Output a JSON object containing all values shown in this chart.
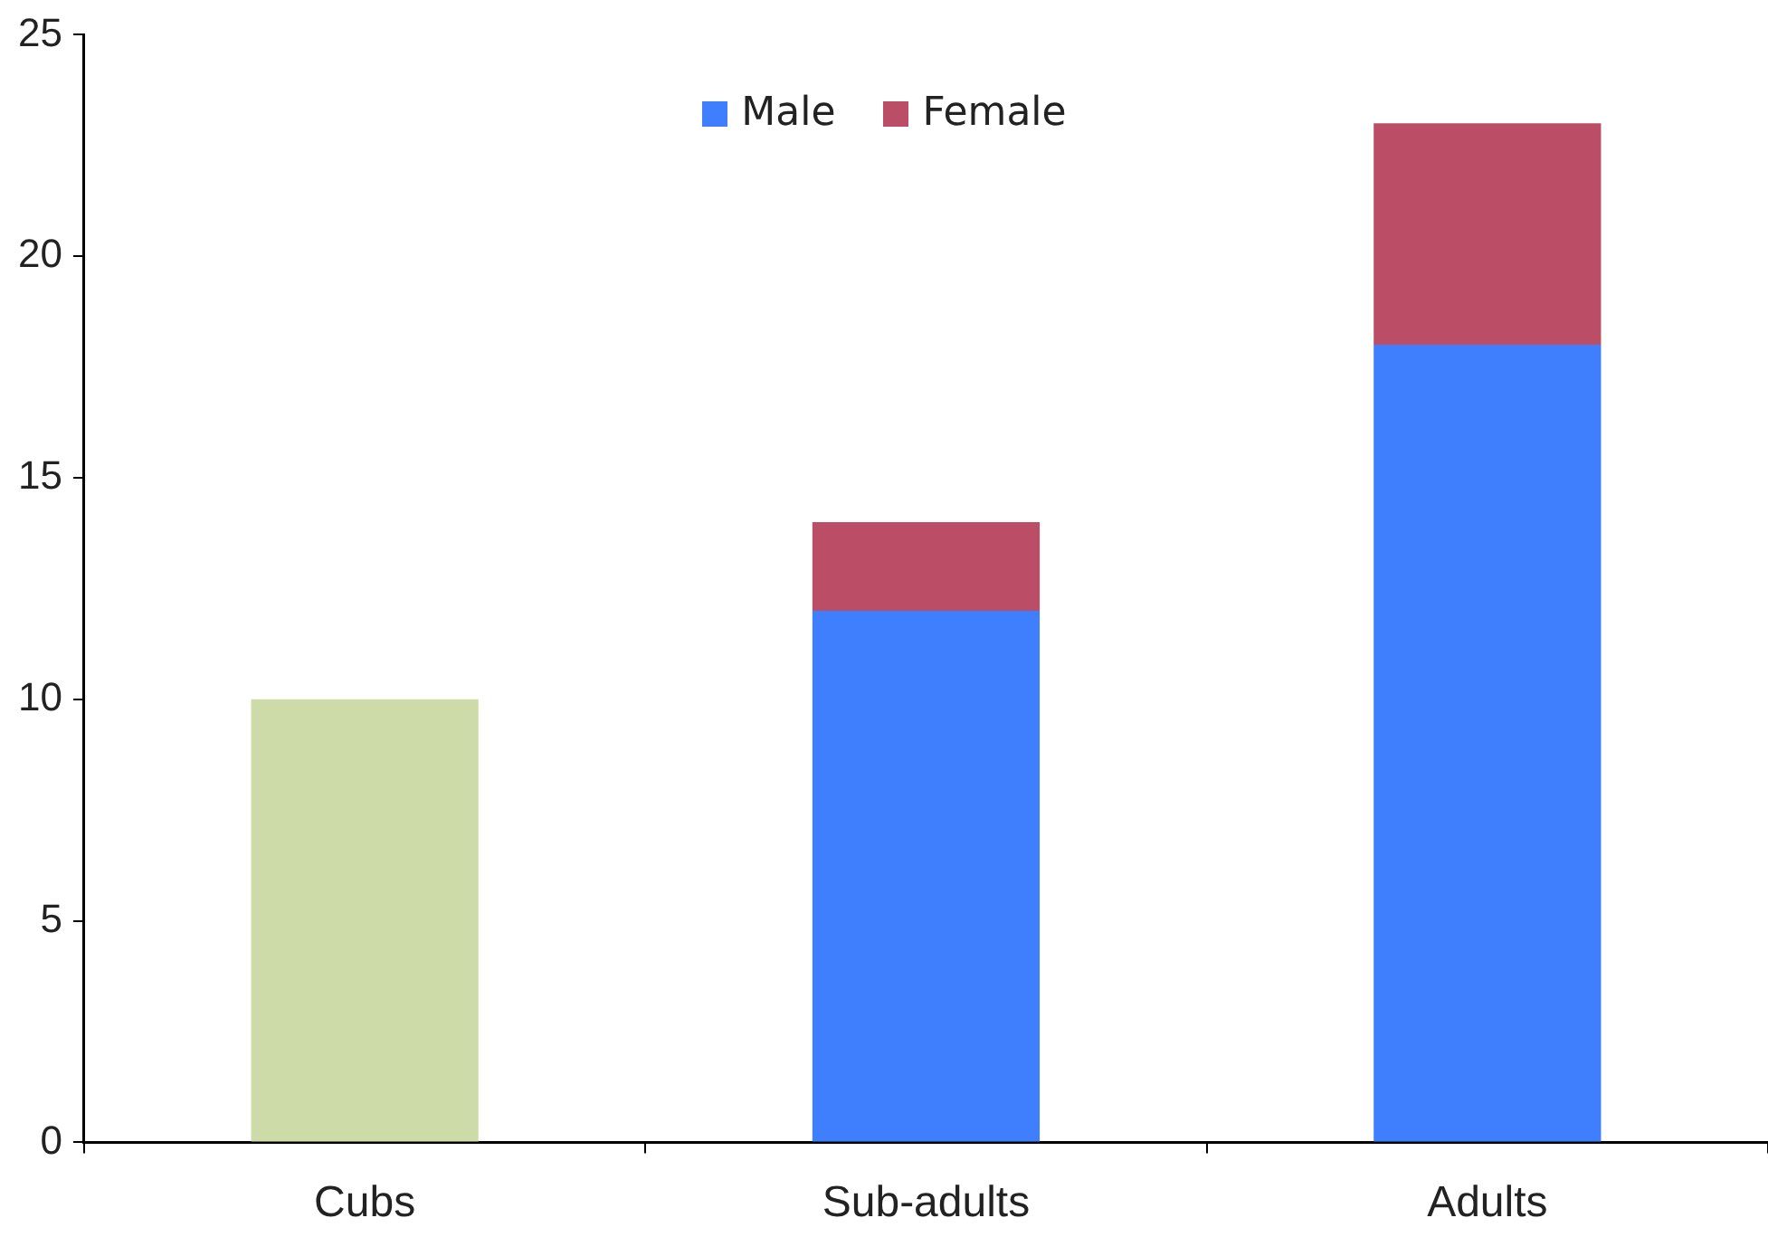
{
  "chart_data": {
    "type": "bar",
    "stacked": true,
    "categories": [
      "Cubs",
      "Sub-adults",
      "Adults"
    ],
    "series": [
      {
        "name": "Male",
        "color": "#3f7ffd",
        "colors": [
          "#cddba8",
          "#3f7ffd",
          "#3f7ffd"
        ],
        "values": [
          10,
          12,
          18
        ]
      },
      {
        "name": "Female",
        "color": "#bb4e66",
        "values": [
          null,
          2,
          5
        ]
      }
    ],
    "ylim": [
      0,
      25
    ],
    "yticks": [
      0,
      5,
      10,
      15,
      20,
      25
    ],
    "grid": false,
    "legend": "top"
  }
}
